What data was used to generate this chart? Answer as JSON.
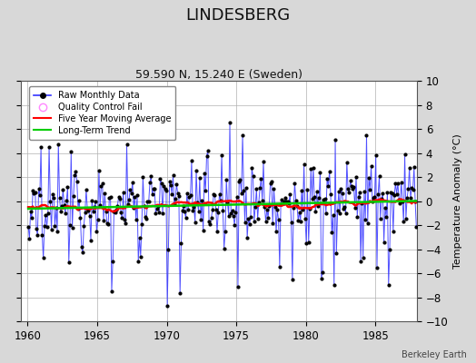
{
  "title": "LINDESBERG",
  "subtitle": "59.590 N, 15.240 E (Sweden)",
  "ylabel": "Temperature Anomaly (°C)",
  "attribution": "Berkeley Earth",
  "xlim": [
    1959.5,
    1988.0
  ],
  "ylim": [
    -10,
    10
  ],
  "xticks": [
    1960,
    1965,
    1970,
    1975,
    1980,
    1985
  ],
  "yticks": [
    -10,
    -8,
    -6,
    -4,
    -2,
    0,
    2,
    4,
    6,
    8,
    10
  ],
  "background_color": "#d8d8d8",
  "plot_background": "#ffffff",
  "raw_line_color": "#3333ff",
  "raw_marker_color": "#000000",
  "moving_avg_color": "#ff0000",
  "trend_color": "#00cc00",
  "qc_fail_color": "#ff88ff",
  "title_fontsize": 13,
  "subtitle_fontsize": 9,
  "figsize": [
    5.24,
    4.0
  ],
  "dpi": 100
}
